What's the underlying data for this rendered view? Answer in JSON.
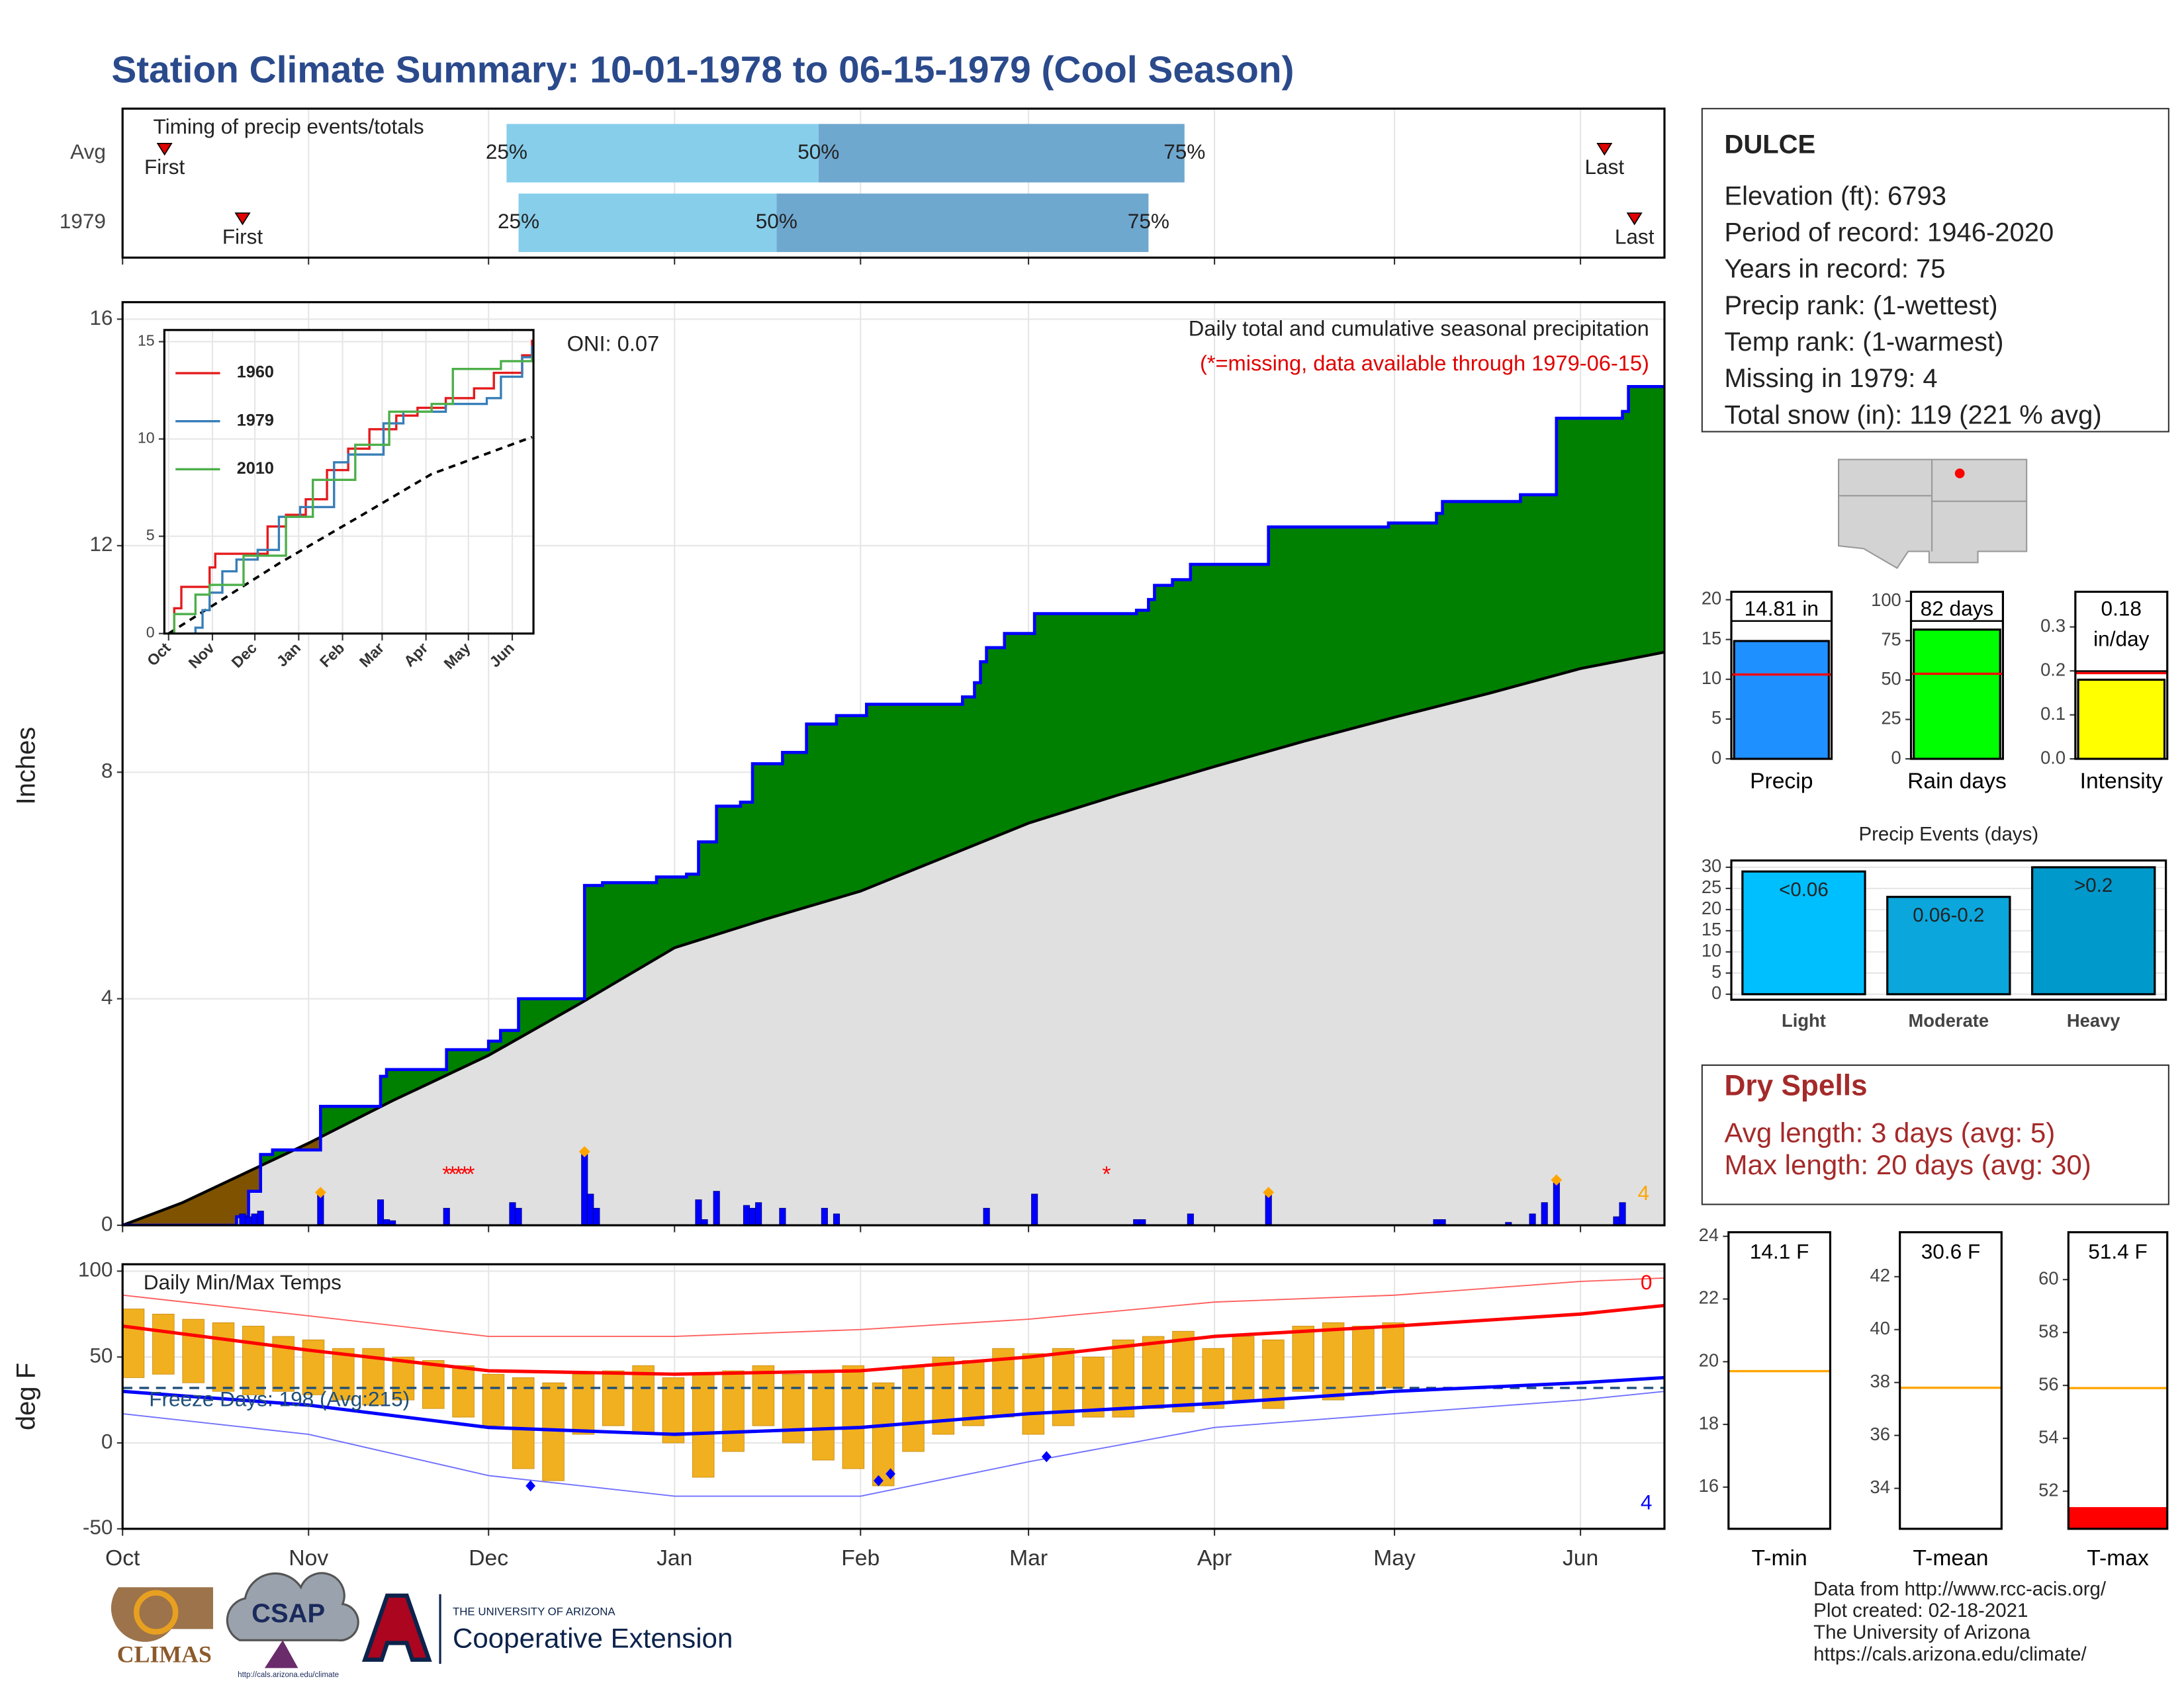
{
  "title": "Station Climate Summary: 10-01-1978 to 06-15-1979 (Cool Season)",
  "station": {
    "name": "DULCE",
    "lines": [
      "Elevation (ft): 6793",
      "Period of record: 1946-2020",
      "Years in record: 75",
      "Precip rank:  (1-wettest)",
      "Temp rank:  (1-warmest)",
      "Missing in 1979: 4",
      "Total snow (in): 119 (221 % avg)"
    ]
  },
  "dry_spells": {
    "title": "Dry Spells",
    "lines": [
      "Avg length: 3 days (avg: 5)",
      "Max length: 20 days (avg: 30)"
    ]
  },
  "footer": [
    "Data from http://www.rcc-acis.org/",
    "Plot created: 02-18-2021",
    "The University of Arizona",
    "https://cals.arizona.edu/climate/"
  ],
  "logos": {
    "climas": "CLIMAS",
    "csap": "CSAP",
    "csap_url": "http://cals.arizona.edu/climate",
    "university": "THE UNIVERSITY OF ARIZONA",
    "extension": "Cooperative Extension"
  },
  "chart_data": [
    {
      "type": "timing",
      "title": "Timing of precip events/totals",
      "categories": [
        "Avg",
        "1979"
      ],
      "first": [
        7,
        20
      ],
      "q25": [
        64,
        66
      ],
      "q50": [
        116,
        109
      ],
      "q75": [
        177,
        171
      ],
      "last": [
        247,
        252
      ],
      "labels": {
        "first": "First",
        "q25": "25%",
        "q50": "50%",
        "q75": "75%",
        "last": "Last"
      },
      "colors": [
        "#87ceeb",
        "#6fa8cf"
      ],
      "marker_color": "#e00000",
      "xlim": [
        0,
        257
      ],
      "xticks": [
        0,
        31,
        61,
        92,
        123,
        151,
        182,
        212,
        243
      ],
      "grid": true
    },
    {
      "type": "cumulative",
      "title": "Daily total and cumulative seasonal precipitation",
      "subtitle": "(*=missing, data available through 1979-06-15)",
      "annotation": "ONI: 0.07",
      "ylabel": "Inches",
      "xlim": [
        0,
        257
      ],
      "ylim": [
        0,
        16.3
      ],
      "xticks": [
        0,
        31,
        61,
        92,
        123,
        151,
        182,
        212,
        243
      ],
      "yticks": [
        0,
        4,
        8,
        12,
        16
      ],
      "grid": true,
      "cumulative": {
        "name": "1979",
        "color": "#0000ff",
        "fill": "#008000",
        "x": [
          0,
          19,
          21,
          23,
          25,
          33,
          43,
          44,
          54,
          61,
          63,
          66,
          77,
          80,
          89,
          94,
          96,
          99,
          103,
          105,
          110,
          114,
          119,
          124,
          140,
          142,
          143,
          144,
          147,
          152,
          169,
          171,
          172,
          175,
          178,
          191,
          211,
          219,
          220,
          233,
          239,
          250,
          251,
          257
        ],
        "values": [
          0,
          0.15,
          0.6,
          1.25,
          1.33,
          2.1,
          2.63,
          2.75,
          3.1,
          3.25,
          3.44,
          4.0,
          6.0,
          6.05,
          6.15,
          6.2,
          6.77,
          7.4,
          7.47,
          8.15,
          8.35,
          8.85,
          9.0,
          9.2,
          9.33,
          9.58,
          9.95,
          10.2,
          10.45,
          10.8,
          10.86,
          11.05,
          11.3,
          11.4,
          11.67,
          12.33,
          12.4,
          12.57,
          12.78,
          12.9,
          14.25,
          14.37,
          14.81,
          14.81
        ]
      },
      "average": {
        "color": "#000000",
        "fill": "#e0e0e0",
        "below_fill": "#7f5200",
        "x": [
          0,
          10,
          20,
          31,
          45,
          61,
          76,
          92,
          107,
          123,
          137,
          151,
          166,
          182,
          197,
          212,
          228,
          243,
          257
        ],
        "values": [
          0,
          0.4,
          0.9,
          1.45,
          2.2,
          3.0,
          3.9,
          4.9,
          5.4,
          5.9,
          6.5,
          7.1,
          7.6,
          8.1,
          8.55,
          8.97,
          9.4,
          9.83,
          10.12
        ]
      },
      "daily": {
        "color": "#0000ff",
        "x": [
          20,
          21,
          22,
          23,
          33,
          43,
          44,
          45,
          54,
          65,
          66,
          77,
          78,
          79,
          96,
          97,
          99,
          104,
          105,
          106,
          110,
          117,
          119,
          144,
          152,
          169,
          170,
          178,
          191,
          219,
          220,
          231,
          235,
          237,
          239,
          249,
          250
        ],
        "values": [
          0.2,
          0.15,
          0.2,
          0.25,
          0.55,
          0.45,
          0.1,
          0.08,
          0.3,
          0.4,
          0.3,
          1.25,
          0.55,
          0.3,
          0.45,
          0.1,
          0.6,
          0.35,
          0.3,
          0.4,
          0.3,
          0.3,
          0.2,
          0.3,
          0.55,
          0.1,
          0.1,
          0.2,
          0.55,
          0.1,
          0.1,
          0.05,
          0.2,
          0.4,
          0.75,
          0.15,
          0.4
        ]
      },
      "max_events": {
        "color": "#ffa500",
        "x": [
          33,
          77,
          191,
          239
        ],
        "values": [
          0.58,
          1.3,
          0.58,
          0.8
        ]
      },
      "missing": {
        "color": "#ff0000",
        "marker": "*",
        "x": [
          54,
          55,
          56,
          57,
          58,
          164
        ],
        "values": [
          0.95,
          0.95,
          0.95,
          0.95,
          0.95,
          0.95
        ]
      },
      "event_count": 4,
      "event_count_color": "#ffa500"
    },
    {
      "type": "line",
      "xlim": [
        -3,
        258
      ],
      "ylim": [
        0,
        15.6
      ],
      "xticks": [
        {
          "value": 0,
          "label": "Oct"
        },
        {
          "value": 31,
          "label": "Nov"
        },
        {
          "value": 61,
          "label": "Dec"
        },
        {
          "value": 92,
          "label": "Jan"
        },
        {
          "value": 123,
          "label": "Feb"
        },
        {
          "value": 151,
          "label": "Mar"
        },
        {
          "value": 182,
          "label": "Apr"
        },
        {
          "value": 212,
          "label": "May"
        },
        {
          "value": 243,
          "label": "Jun"
        }
      ],
      "yticks": [
        0,
        5,
        10,
        15
      ],
      "grid": true,
      "series": [
        {
          "name": "1960",
          "color": "#e41a1c",
          "x": [
            0,
            4,
            9,
            29,
            33,
            68,
            70,
            83,
            97,
            112,
            127,
            142,
            161,
            176,
            196,
            216,
            230,
            250,
            257
          ],
          "values": [
            0,
            1.3,
            2.4,
            3.4,
            4.1,
            4.1,
            5.5,
            6.1,
            6.9,
            8.4,
            9.5,
            10.5,
            11.2,
            11.6,
            12.1,
            12.6,
            13.4,
            14.3,
            15.1
          ]
        },
        {
          "name": "1979",
          "color": "#377eb8",
          "x": [
            0,
            19,
            24,
            29,
            38,
            48,
            63,
            78,
            93,
            117,
            127,
            152,
            166,
            196,
            225,
            235,
            250,
            257
          ],
          "values": [
            0,
            0.3,
            1.2,
            2.1,
            3.2,
            3.8,
            4.3,
            6.0,
            6.5,
            8.8,
            9.2,
            10.8,
            11.4,
            11.8,
            12.1,
            13.2,
            14.2,
            14.8
          ]
        },
        {
          "name": "2010",
          "color": "#4daf4a",
          "x": [
            0,
            4,
            19,
            29,
            53,
            83,
            102,
            132,
            156,
            186,
            201,
            235,
            257
          ],
          "values": [
            0,
            1,
            2,
            2.5,
            4,
            6,
            7.9,
            9.7,
            11.4,
            11.8,
            13.6,
            14,
            14.2
          ]
        }
      ],
      "average": {
        "color": "#000000",
        "x": [
          0,
          78,
          137,
          186,
          257
        ],
        "values": [
          0,
          3.6,
          6.1,
          8.2,
          10.1
        ]
      }
    },
    {
      "type": "temperature",
      "title": "Daily Min/Max Temps",
      "ylabel": "deg F",
      "annotation": "Freeze Days: 198 (Avg:215)",
      "xlim": [
        0,
        257
      ],
      "ylim": [
        -50,
        104
      ],
      "yticks": [
        -50,
        0,
        50,
        100
      ],
      "grid": true,
      "xticks": [
        {
          "value": 0,
          "label": "Oct"
        },
        {
          "value": 31,
          "label": "Nov"
        },
        {
          "value": 61,
          "label": "Dec"
        },
        {
          "value": 92,
          "label": "Jan"
        },
        {
          "value": 123,
          "label": "Feb"
        },
        {
          "value": 151,
          "label": "Mar"
        },
        {
          "value": 182,
          "label": "Apr"
        },
        {
          "value": 212,
          "label": "May"
        },
        {
          "value": 243,
          "label": "Jun"
        }
      ],
      "freeze": {
        "value": 32,
        "color": "#1f4e79"
      },
      "daily": {
        "color": "#f0b020",
        "x": [
          0,
          5,
          10,
          15,
          20,
          25,
          30,
          35,
          40,
          45,
          50,
          55,
          60,
          65,
          70,
          75,
          80,
          85,
          90,
          95,
          100,
          105,
          110,
          115,
          120,
          125,
          130,
          135,
          140,
          145,
          150,
          155,
          160,
          165,
          170,
          175,
          180,
          185,
          190,
          195,
          200,
          205,
          210
        ],
        "min": [
          38,
          40,
          35,
          30,
          28,
          30,
          28,
          25,
          22,
          25,
          20,
          15,
          10,
          -15,
          -22,
          5,
          10,
          5,
          0,
          -20,
          -5,
          10,
          0,
          -10,
          -15,
          -25,
          -5,
          5,
          10,
          15,
          5,
          10,
          15,
          15,
          20,
          18,
          20,
          25,
          20,
          30,
          25,
          28,
          32
        ],
        "max": [
          78,
          75,
          72,
          70,
          68,
          62,
          60,
          55,
          55,
          50,
          48,
          45,
          40,
          38,
          35,
          40,
          42,
          45,
          38,
          40,
          42,
          45,
          40,
          42,
          45,
          35,
          45,
          50,
          48,
          55,
          52,
          55,
          50,
          60,
          62,
          65,
          55,
          62,
          60,
          68,
          70,
          68,
          70
        ]
      },
      "avg_max": {
        "color": "#ff0000",
        "x": [
          0,
          31,
          61,
          92,
          123,
          151,
          182,
          212,
          243,
          257
        ],
        "values": [
          68,
          54,
          42,
          40,
          42,
          50,
          62,
          68,
          75,
          80
        ]
      },
      "avg_min": {
        "color": "#0000ff",
        "x": [
          0,
          31,
          61,
          92,
          123,
          151,
          182,
          212,
          243,
          257
        ],
        "values": [
          30,
          22,
          9,
          5,
          9,
          17,
          23,
          30,
          35,
          38
        ]
      },
      "record_max": {
        "color": "#ff6060",
        "x": [
          0,
          31,
          61,
          92,
          123,
          151,
          182,
          212,
          243,
          257
        ],
        "values": [
          86,
          74,
          62,
          62,
          66,
          72,
          82,
          86,
          94,
          96
        ]
      },
      "record_min": {
        "color": "#7070ff",
        "x": [
          0,
          31,
          61,
          92,
          123,
          151,
          182,
          212,
          243,
          257
        ],
        "values": [
          17,
          5,
          -19,
          -31,
          -31,
          -11,
          9,
          17,
          25,
          30
        ]
      },
      "record_lows": {
        "color": "#0000ff",
        "x": [
          68,
          126,
          128,
          154
        ],
        "values": [
          -25,
          -22,
          -18,
          -8
        ]
      },
      "record_high_count": 0,
      "record_low_count": 4
    },
    {
      "type": "bar",
      "categories": [
        "Precip"
      ],
      "values": [
        14.81
      ],
      "value_labels": [
        "14.81 in"
      ],
      "average": 10.6,
      "average_color": "#ff0000",
      "color": "#1e90ff",
      "ylim": [
        0,
        21
      ],
      "yticks": [
        0,
        5,
        10,
        15,
        20
      ]
    },
    {
      "type": "bar",
      "categories": [
        "Rain days"
      ],
      "values": [
        82
      ],
      "value_labels": [
        "82 days"
      ],
      "average": 54,
      "average_color": "#ff0000",
      "color": "#00ff00",
      "ylim": [
        0,
        106
      ],
      "yticks": [
        0,
        25,
        50,
        75,
        100
      ]
    },
    {
      "type": "bar",
      "categories": [
        "Intensity"
      ],
      "values": [
        0.18
      ],
      "value_labels": [
        "0.18 in/day"
      ],
      "average": 0.195,
      "average_color": "#ff0000",
      "color": "#ffff00",
      "ylim": [
        0,
        0.38
      ],
      "yticks": [
        {
          "value": 0,
          "label": "0.0"
        },
        0.1,
        0.2,
        0.3
      ]
    },
    {
      "type": "bar",
      "title": "Precip Events (days)",
      "categories": [
        "Light",
        "Moderate",
        "Heavy"
      ],
      "values": [
        29,
        23,
        30
      ],
      "bar_labels": [
        "<0.06",
        "0.06-0.2",
        ">0.2"
      ],
      "colors": [
        "#00bfff",
        "#0aa6dc",
        "#0099cc"
      ],
      "ylim": [
        -1.3,
        31.6
      ],
      "yticks": [
        0,
        5,
        10,
        15,
        20,
        25,
        30
      ],
      "grid": true
    },
    {
      "type": "bar",
      "categories": [
        "T-min"
      ],
      "values": [
        14.1
      ],
      "value_labels": [
        "14.1 F"
      ],
      "average": 19.7,
      "average_color": "#ffa500",
      "color": "#ff0000",
      "ylim": [
        14.67,
        24.13
      ],
      "yticks": [
        16,
        18,
        20,
        22,
        24
      ]
    },
    {
      "type": "bar",
      "categories": [
        "T-mean"
      ],
      "values": [
        30.6
      ],
      "value_labels": [
        "30.6 F"
      ],
      "average": 37.8,
      "average_color": "#ffa500",
      "color": "#ff0000",
      "ylim": [
        32.47,
        43.68
      ],
      "yticks": [
        34,
        36,
        38,
        40,
        42
      ]
    },
    {
      "type": "bar",
      "categories": [
        "T-max"
      ],
      "values": [
        51.4
      ],
      "value_labels": [
        "51.4 F"
      ],
      "average": 55.9,
      "average_color": "#ffa500",
      "color": "#ff0000",
      "ylim": [
        50.58,
        61.79
      ],
      "yticks": [
        52,
        54,
        56,
        58,
        60
      ]
    }
  ]
}
